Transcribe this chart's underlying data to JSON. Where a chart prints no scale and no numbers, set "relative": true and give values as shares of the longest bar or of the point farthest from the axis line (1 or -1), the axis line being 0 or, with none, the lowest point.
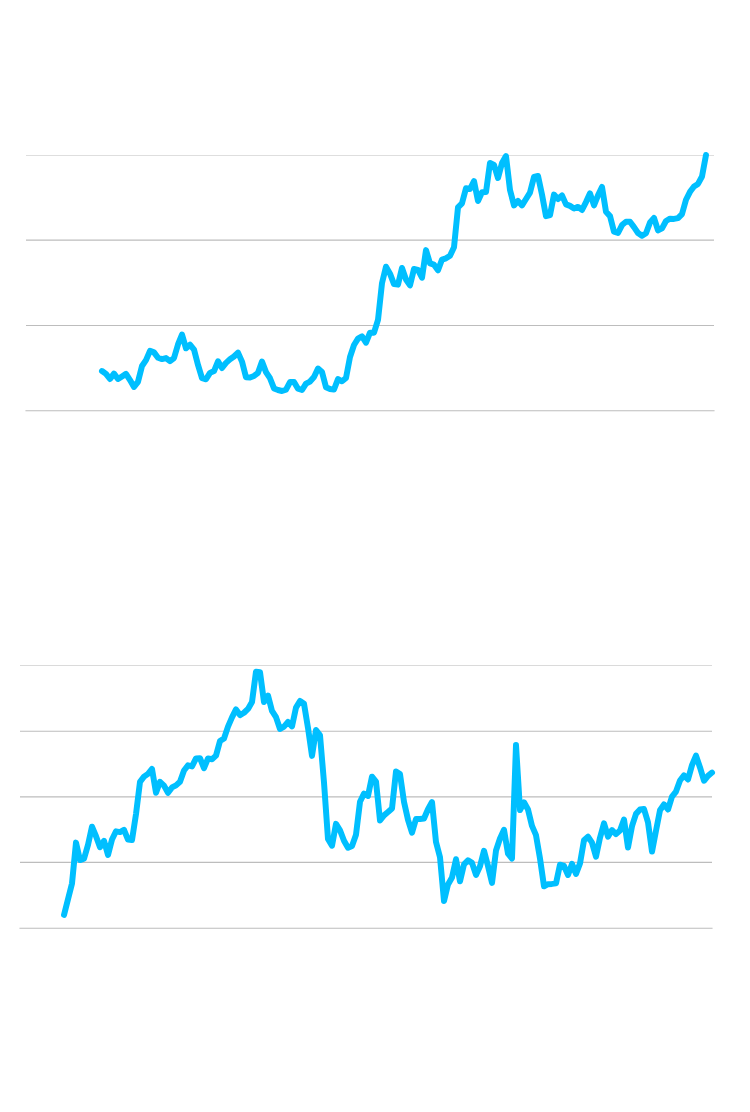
{
  "chart_data": [
    {
      "type": "line",
      "relative": true,
      "color": "#00bfff",
      "ref_lines": [
        {
          "axis": "y",
          "value": 0.333,
          "color": "#bdbdbd"
        },
        {
          "axis": "y",
          "value": 0.667,
          "color": "#bdbdbd"
        },
        {
          "axis": "y",
          "value": 1.0,
          "color": "#bdbdbd"
        }
      ],
      "categories": [
        null,
        null,
        null,
        null,
        null,
        null,
        null,
        null,
        null,
        null,
        null,
        null,
        null,
        null,
        null,
        null,
        null,
        null,
        null,
        null,
        null,
        null,
        null,
        null,
        null,
        null,
        null,
        null,
        null,
        null,
        null,
        null,
        null,
        null,
        null,
        null,
        null,
        null,
        null,
        null,
        null,
        null,
        null,
        null,
        null,
        null,
        null,
        null,
        null,
        null,
        null,
        null,
        null,
        null,
        null,
        null,
        null,
        null,
        null,
        null,
        null,
        null,
        null,
        null,
        null,
        null,
        null,
        null,
        null,
        null,
        null,
        null,
        null,
        null,
        null,
        null,
        null,
        null,
        null,
        null,
        null,
        null,
        null,
        null,
        null,
        null,
        null,
        null,
        null,
        null,
        null,
        null,
        null,
        null,
        null,
        null,
        null,
        null,
        null,
        null,
        null,
        null,
        null,
        null,
        null,
        null,
        null,
        null,
        null,
        null,
        null,
        null,
        null,
        null,
        null,
        null,
        null,
        null,
        null,
        null,
        null,
        null,
        null,
        null,
        null,
        null,
        null,
        null,
        null,
        null,
        null,
        null,
        null,
        null,
        null,
        null,
        null,
        null,
        null,
        null,
        null,
        null,
        null,
        null,
        null,
        null,
        null,
        null,
        null,
        null,
        null,
        null,
        null,
        null,
        null,
        null,
        null,
        null,
        null,
        null,
        null,
        null,
        null,
        null,
        null,
        null,
        null,
        null,
        null,
        null,
        null,
        null,
        null
      ],
      "values": [
        null,
        null,
        null,
        null,
        null,
        null,
        null,
        null,
        null,
        null,
        null,
        null,
        null,
        null,
        null,
        null,
        null,
        null,
        null,
        0.155,
        0.144,
        0.124,
        0.145,
        0.124,
        0.134,
        0.144,
        0.12,
        0.093,
        0.113,
        0.175,
        0.198,
        0.234,
        0.228,
        0.207,
        0.202,
        0.206,
        0.194,
        0.206,
        0.259,
        0.298,
        0.244,
        0.258,
        0.239,
        0.179,
        0.127,
        0.123,
        0.148,
        0.155,
        0.193,
        0.167,
        0.187,
        0.201,
        0.212,
        0.227,
        0.192,
        0.131,
        0.13,
        0.136,
        0.148,
        0.192,
        0.151,
        0.127,
        0.087,
        0.081,
        0.077,
        0.082,
        0.112,
        0.112,
        0.086,
        0.081,
        0.106,
        0.114,
        0.132,
        0.165,
        0.151,
        0.092,
        0.085,
        0.083,
        0.124,
        0.115,
        0.128,
        0.21,
        0.257,
        0.282,
        0.291,
        0.266,
        0.305,
        0.305,
        0.355,
        0.499,
        0.563,
        0.536,
        0.495,
        0.493,
        0.558,
        0.513,
        0.49,
        0.554,
        0.551,
        0.52,
        0.628,
        0.576,
        0.571,
        0.549,
        0.591,
        0.596,
        0.606,
        0.639,
        0.795,
        0.811,
        0.87,
        0.867,
        0.898,
        0.82,
        0.854,
        0.855,
        0.969,
        0.961,
        0.91,
        0.969,
        0.996,
        0.863,
        0.803,
        0.82,
        0.803,
        0.828,
        0.853,
        0.914,
        0.918,
        0.845,
        0.761,
        0.765,
        0.845,
        0.828,
        0.842,
        0.807,
        0.801,
        0.791,
        0.797,
        0.785,
        0.816,
        0.85,
        0.803,
        0.842,
        0.875,
        0.778,
        0.761,
        0.7,
        0.695,
        0.726,
        0.739,
        0.739,
        0.718,
        0.695,
        0.684,
        0.694,
        0.736,
        0.754,
        0.705,
        0.713,
        0.742,
        0.751,
        0.75,
        0.753,
        0.769,
        0.825,
        0.856,
        0.877,
        0.887,
        0.916,
        1.0,
        null,
        null
      ]
    },
    {
      "type": "line",
      "relative": true,
      "color": "#00bfff",
      "ref_lines": [
        {
          "axis": "y",
          "value": 0.257,
          "color": "#bdbdbd"
        },
        {
          "axis": "y",
          "value": 0.512,
          "color": "#bdbdbd"
        },
        {
          "axis": "y",
          "value": 0.768,
          "color": "#bdbdbd"
        },
        {
          "axis": "y",
          "value": 1.025,
          "color": "#bdbdbd"
        }
      ],
      "categories": [
        null,
        null,
        null,
        null,
        null,
        null,
        null,
        null,
        null,
        null,
        null,
        null,
        null,
        null,
        null,
        null,
        null,
        null,
        null,
        null,
        null,
        null,
        null,
        null,
        null,
        null,
        null,
        null,
        null,
        null,
        null,
        null,
        null,
        null,
        null,
        null,
        null,
        null,
        null,
        null,
        null,
        null,
        null,
        null,
        null,
        null,
        null,
        null,
        null,
        null,
        null,
        null,
        null,
        null,
        null,
        null,
        null,
        null,
        null,
        null,
        null,
        null,
        null,
        null,
        null,
        null,
        null,
        null,
        null,
        null,
        null,
        null,
        null,
        null,
        null,
        null,
        null,
        null,
        null,
        null,
        null,
        null,
        null,
        null,
        null,
        null,
        null,
        null,
        null,
        null,
        null,
        null,
        null,
        null,
        null,
        null,
        null,
        null,
        null,
        null,
        null,
        null,
        null,
        null,
        null,
        null,
        null,
        null,
        null,
        null,
        null,
        null,
        null,
        null,
        null,
        null,
        null,
        null,
        null,
        null,
        null,
        null,
        null,
        null,
        null,
        null,
        null,
        null,
        null,
        null,
        null,
        null,
        null,
        null,
        null,
        null,
        null,
        null,
        null,
        null,
        null,
        null,
        null,
        null,
        null,
        null,
        null,
        null,
        null,
        null,
        null,
        null,
        null,
        null,
        null,
        null,
        null,
        null,
        null,
        null,
        null,
        null,
        null,
        null,
        null,
        null,
        null,
        null,
        null,
        null,
        null,
        null,
        null,
        null
      ],
      "values": [
        null,
        null,
        null,
        null,
        null,
        null,
        null,
        null,
        null,
        null,
        null,
        0.052,
        0.113,
        0.175,
        0.334,
        0.266,
        0.271,
        0.325,
        0.396,
        0.359,
        0.316,
        0.341,
        0.286,
        0.346,
        0.378,
        0.375,
        0.384,
        0.346,
        0.344,
        0.445,
        0.571,
        0.591,
        0.602,
        0.621,
        0.528,
        0.571,
        0.556,
        0.528,
        0.549,
        0.557,
        0.571,
        0.615,
        0.635,
        0.631,
        0.662,
        0.663,
        0.624,
        0.662,
        0.659,
        0.673,
        0.73,
        0.74,
        0.786,
        0.822,
        0.853,
        0.831,
        0.84,
        0.855,
        0.882,
        1.0,
        0.998,
        0.882,
        0.907,
        0.847,
        0.823,
        0.777,
        0.786,
        0.804,
        0.787,
        0.86,
        0.886,
        0.875,
        0.781,
        0.672,
        0.773,
        0.752,
        0.568,
        0.348,
        0.322,
        0.407,
        0.382,
        0.341,
        0.314,
        0.321,
        0.365,
        0.493,
        0.525,
        0.516,
        0.591,
        0.572,
        0.42,
        0.44,
        0.453,
        0.467,
        0.611,
        0.601,
        0.493,
        0.423,
        0.373,
        0.426,
        0.426,
        0.428,
        0.464,
        0.492,
        0.336,
        0.277,
        0.106,
        0.171,
        0.198,
        0.269,
        0.183,
        0.249,
        0.265,
        0.255,
        0.208,
        0.242,
        0.302,
        0.243,
        0.177,
        0.303,
        0.35,
        0.384,
        0.291,
        0.272,
        0.714,
        0.461,
        0.491,
        0.463,
        0.399,
        0.363,
        0.272,
        0.164,
        0.172,
        0.173,
        0.175,
        0.248,
        0.243,
        0.208,
        0.251,
        0.212,
        0.253,
        0.343,
        0.357,
        0.334,
        0.279,
        0.353,
        0.409,
        0.357,
        0.383,
        0.367,
        0.381,
        0.424,
        0.315,
        0.398,
        0.446,
        0.463,
        0.465,
        0.413,
        0.299,
        0.38,
        0.46,
        0.483,
        0.463,
        0.513,
        0.533,
        0.576,
        0.596,
        0.58,
        0.636,
        0.673,
        0.627,
        0.575,
        0.594,
        0.607
      ]
    }
  ]
}
